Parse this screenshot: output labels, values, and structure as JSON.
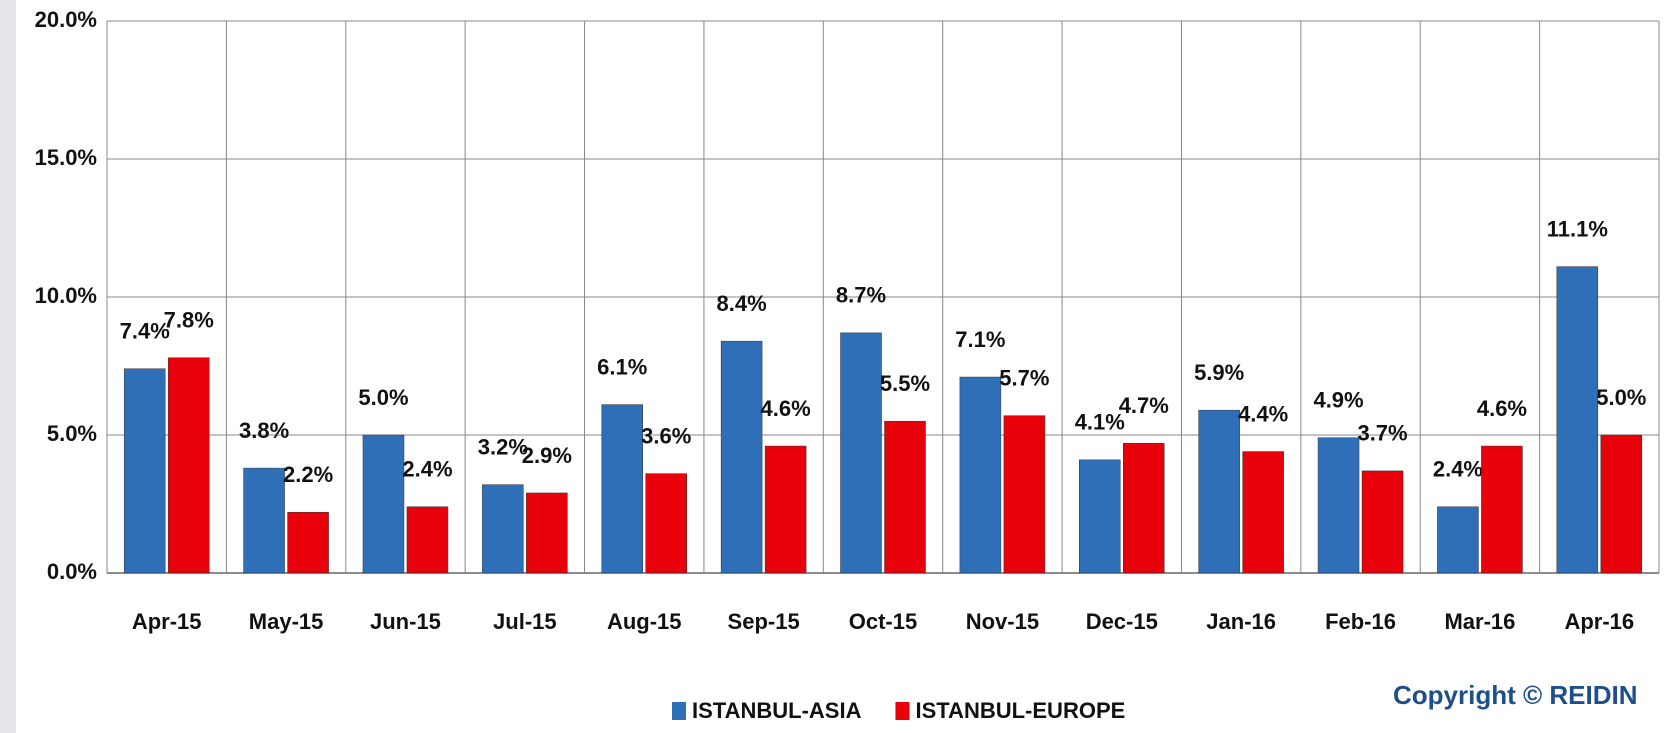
{
  "chart_data": {
    "type": "bar",
    "categories": [
      "Apr-15",
      "May-15",
      "Jun-15",
      "Jul-15",
      "Aug-15",
      "Sep-15",
      "Oct-15",
      "Nov-15",
      "Dec-15",
      "Jan-16",
      "Feb-16",
      "Mar-16",
      "Apr-16"
    ],
    "series": [
      {
        "name": "ISTANBUL-ASIA",
        "color": "#2f6fb8",
        "values": [
          7.4,
          3.8,
          5.0,
          3.2,
          6.1,
          8.4,
          8.7,
          7.1,
          4.1,
          5.9,
          4.9,
          2.4,
          11.1
        ],
        "value_labels": [
          "7.4%",
          "3.8%",
          "5.0%",
          "3.2%",
          "6.1%",
          "8.4%",
          "8.7%",
          "7.1%",
          "4.1%",
          "5.9%",
          "4.9%",
          "2.4%",
          "11.1%"
        ]
      },
      {
        "name": "ISTANBUL-EUROPE",
        "color": "#e8000b",
        "values": [
          7.8,
          2.2,
          2.4,
          2.9,
          3.6,
          4.6,
          5.5,
          5.7,
          4.7,
          4.4,
          3.7,
          4.6,
          5.0
        ],
        "value_labels": [
          "7.8%",
          "2.2%",
          "2.4%",
          "2.9%",
          "3.6%",
          "4.6%",
          "5.5%",
          "5.7%",
          "4.7%",
          "4.4%",
          "3.7%",
          "4.6%",
          "5.0%"
        ]
      }
    ],
    "ylim": [
      0,
      20
    ],
    "yticks": [
      {
        "value": 0,
        "label": "0.0%"
      },
      {
        "value": 5,
        "label": "5.0%"
      },
      {
        "value": 10,
        "label": "10.0%"
      },
      {
        "value": 15,
        "label": "15.0%"
      },
      {
        "value": 20,
        "label": "20.0%"
      }
    ],
    "grid": true,
    "legend": "bottom",
    "copyright": "Copyright © REIDIN"
  }
}
